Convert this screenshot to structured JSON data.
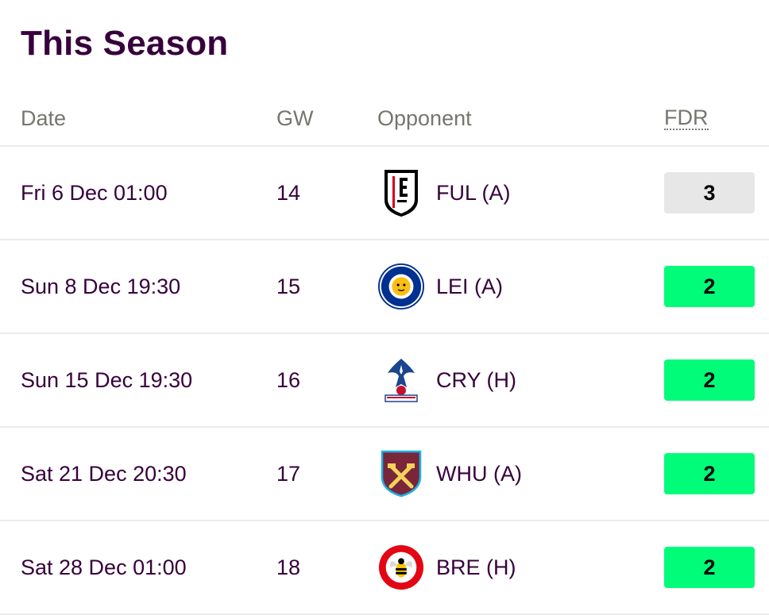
{
  "page": {
    "title": "This Season"
  },
  "table": {
    "headers": {
      "date": "Date",
      "gw": "GW",
      "opponent": "Opponent",
      "fdr": "FDR"
    },
    "rows": [
      {
        "date": "Fri 6 Dec 01:00",
        "gw": "14",
        "opponent": "FUL (A)",
        "crest_icon": "fulham-crest-icon",
        "fdr": "3",
        "fdr_color": "#e7e7e7"
      },
      {
        "date": "Sun 8 Dec 19:30",
        "gw": "15",
        "opponent": "LEI (A)",
        "crest_icon": "leicester-crest-icon",
        "fdr": "2",
        "fdr_color": "#01fc7a"
      },
      {
        "date": "Sun 15 Dec 19:30",
        "gw": "16",
        "opponent": "CRY (H)",
        "crest_icon": "crystal-palace-crest-icon",
        "fdr": "2",
        "fdr_color": "#01fc7a"
      },
      {
        "date": "Sat 21 Dec 20:30",
        "gw": "17",
        "opponent": "WHU (A)",
        "crest_icon": "west-ham-crest-icon",
        "fdr": "2",
        "fdr_color": "#01fc7a"
      },
      {
        "date": "Sat 28 Dec 01:00",
        "gw": "18",
        "opponent": "BRE (H)",
        "crest_icon": "brentford-crest-icon",
        "fdr": "2",
        "fdr_color": "#01fc7a"
      }
    ]
  }
}
